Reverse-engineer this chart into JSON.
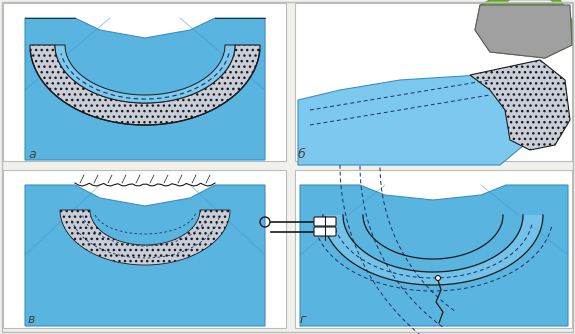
{
  "background_color": "#f0f0ec",
  "white": "#ffffff",
  "blue_main": "#5ab4e0",
  "blue_light": "#7dc8ee",
  "blue_dark": "#3a90c0",
  "blue_pale": "#a8d8f0",
  "dotted_gray": "#c8cdd8",
  "stitch_dark": "#1a1a1a",
  "dashed_blue": "#1a3060",
  "iron_green": "#7cb842",
  "iron_green_dark": "#5a9030",
  "iron_gray": "#808080",
  "iron_white": "#e0e0e0",
  "label_a": "а",
  "label_b": "б",
  "label_v": "в",
  "label_g": "г",
  "border_color": "#bbbbbb"
}
